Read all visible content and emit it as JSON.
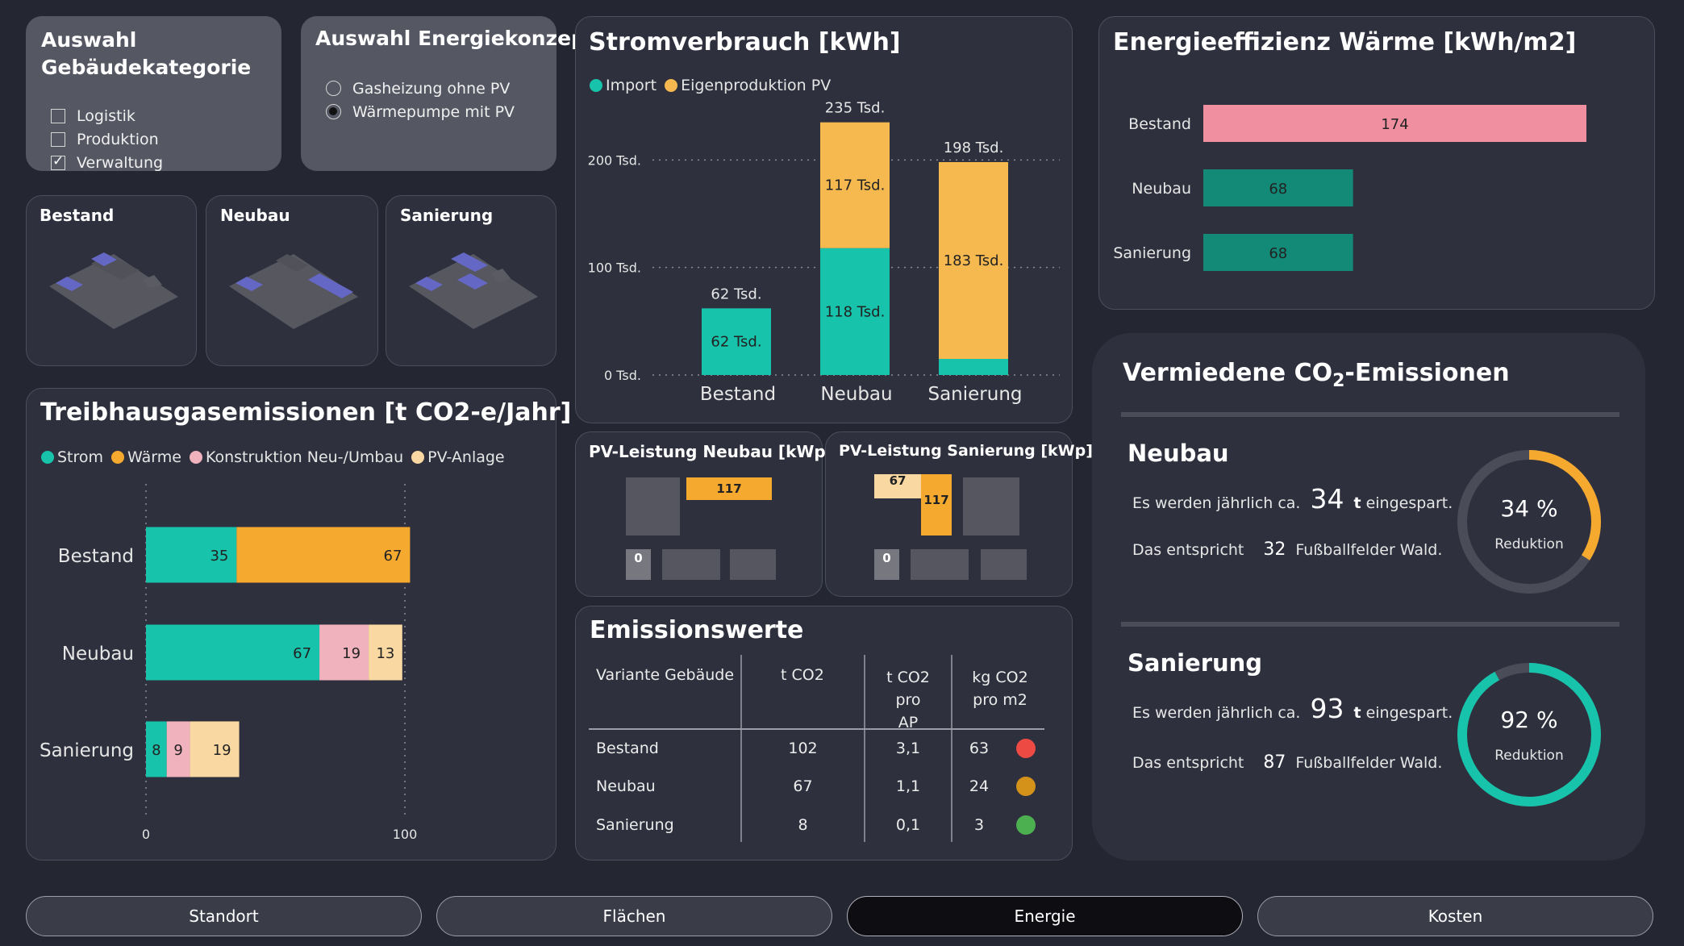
{
  "building_filter": {
    "title": "Auswahl Gebäudekategorie",
    "options": [
      {
        "label": "Logistik",
        "checked": false
      },
      {
        "label": "Produktion",
        "checked": false
      },
      {
        "label": "Verwaltung",
        "checked": true
      }
    ]
  },
  "energy_concept": {
    "title": "Auswahl Energiekonzept",
    "options": [
      {
        "label": "Gasheizung ohne PV",
        "selected": false
      },
      {
        "label": "Wärmepumpe mit PV",
        "selected": true
      }
    ]
  },
  "building_cards": [
    {
      "label": "Bestand"
    },
    {
      "label": "Neubau"
    },
    {
      "label": "Sanierung"
    }
  ],
  "colors": {
    "import": "#17c3aa",
    "pv": "#f5b94f",
    "strom": "#17c3aa",
    "waerme": "#f5a92f",
    "konstruktion": "#f0b2bd",
    "pv_anlage": "#fad8a2",
    "bestand_eff": "#ef8fa0",
    "good_eff": "#138a78",
    "status_red": "#ed4a44",
    "status_orange": "#d4921a",
    "status_green": "#4caf50"
  },
  "strom_chart": {
    "title": "Stromverbrauch [kWh]",
    "legend": [
      "Import",
      "Eigenproduktion PV"
    ]
  },
  "ghg_chart": {
    "title": "Treibhausgasemissionen [t CO2-e/Jahr]",
    "legend": [
      "Strom",
      "Wärme",
      "Konstruktion Neu-/Umbau",
      "PV-Anlage"
    ]
  },
  "eff_chart": {
    "title": "Energieeffizienz Wärme [kWh/m2]"
  },
  "pv_neubau": {
    "title": "PV-Leistung Neubau [kWp]",
    "values": {
      "roof_value": "117",
      "zero": "0"
    }
  },
  "pv_sanierung": {
    "title": "PV-Leistung Sanierung [kWp]",
    "values": {
      "small": "67",
      "main": "117",
      "zero": "0"
    }
  },
  "emissions_table": {
    "title": "Emissionswerte",
    "headers": [
      "Variante Gebäude",
      "t CO2",
      "t CO2\npro AP",
      "kg CO2\npro m2"
    ],
    "rows": [
      {
        "name": "Bestand",
        "t_co2": "102",
        "per_ap": "3,1",
        "per_m2": "63",
        "status": "red"
      },
      {
        "name": "Neubau",
        "t_co2": "67",
        "per_ap": "1,1",
        "per_m2": "24",
        "status": "orange"
      },
      {
        "name": "Sanierung",
        "t_co2": "8",
        "per_ap": "0,1",
        "per_m2": "3",
        "status": "green"
      }
    ]
  },
  "avoided": {
    "title_pre": "Vermiedene CO",
    "title_sub": "2",
    "title_post": "-Emissionen",
    "sections": [
      {
        "name": "Neubau",
        "prefix": "Es werden jährlich ca.",
        "tonnes": "34",
        "unit": "t",
        "suffix": "eingespart.",
        "eq_prefix": "Das entspricht",
        "fields": "32",
        "eq_suffix": "Fußballfelder Wald.",
        "pct_label": "34 %",
        "pct_value": 0.34,
        "reduction": "Reduktion",
        "ring_color": "#f5a92f"
      },
      {
        "name": "Sanierung",
        "prefix": "Es werden jährlich ca.",
        "tonnes": "93",
        "unit": "t",
        "suffix": "eingespart.",
        "eq_prefix": "Das entspricht",
        "fields": "87",
        "eq_suffix": "Fußballfelder Wald.",
        "pct_label": "92 %",
        "pct_value": 0.92,
        "reduction": "Reduktion",
        "ring_color": "#17c3aa"
      }
    ]
  },
  "nav": [
    {
      "label": "Standort",
      "active": false
    },
    {
      "label": "Flächen",
      "active": false
    },
    {
      "label": "Energie",
      "active": true
    },
    {
      "label": "Kosten",
      "active": false
    }
  ],
  "chart_data": [
    {
      "type": "bar",
      "title": "Stromverbrauch [kWh]",
      "stacked": true,
      "categories": [
        "Bestand",
        "Neubau",
        "Sanierung"
      ],
      "series": [
        {
          "name": "Import",
          "values": [
            62000,
            118000,
            15000
          ]
        },
        {
          "name": "Eigenproduktion PV",
          "values": [
            0,
            117000,
            183000
          ]
        }
      ],
      "data_labels": [
        {
          "category": "Bestand",
          "series": "Import",
          "text": "62 Tsd."
        },
        {
          "category": "Neubau",
          "series": "Import",
          "text": "118 Tsd."
        },
        {
          "category": "Neubau",
          "series": "Eigenproduktion PV",
          "text": "117 Tsd."
        },
        {
          "category": "Sanierung",
          "series": "Eigenproduktion PV",
          "text": "183 Tsd."
        }
      ],
      "totals": [
        "62 Tsd.",
        "235 Tsd.",
        "198 Tsd."
      ],
      "yticks": [
        "0 Tsd.",
        "100 Tsd.",
        "200 Tsd."
      ],
      "ylim": [
        0,
        240000
      ],
      "grid": true,
      "legend_position": "top-left"
    },
    {
      "type": "bar",
      "orientation": "horizontal",
      "title": "Treibhausgasemissionen [t CO2-e/Jahr]",
      "stacked": true,
      "categories": [
        "Bestand",
        "Neubau",
        "Sanierung"
      ],
      "series": [
        {
          "name": "Strom",
          "values": [
            35,
            67,
            8
          ]
        },
        {
          "name": "Wärme",
          "values": [
            67,
            0,
            0
          ]
        },
        {
          "name": "Konstruktion Neu-/Umbau",
          "values": [
            0,
            19,
            9
          ]
        },
        {
          "name": "PV-Anlage",
          "values": [
            0,
            13,
            19
          ]
        }
      ],
      "xticks": [
        "0",
        "100"
      ],
      "xlim": [
        0,
        100
      ],
      "legend_position": "top-left"
    },
    {
      "type": "bar",
      "orientation": "horizontal",
      "title": "Energieeffizienz Wärme [kWh/m2]",
      "categories": [
        "Bestand",
        "Neubau",
        "Sanierung"
      ],
      "values": [
        174,
        68,
        68
      ]
    }
  ]
}
